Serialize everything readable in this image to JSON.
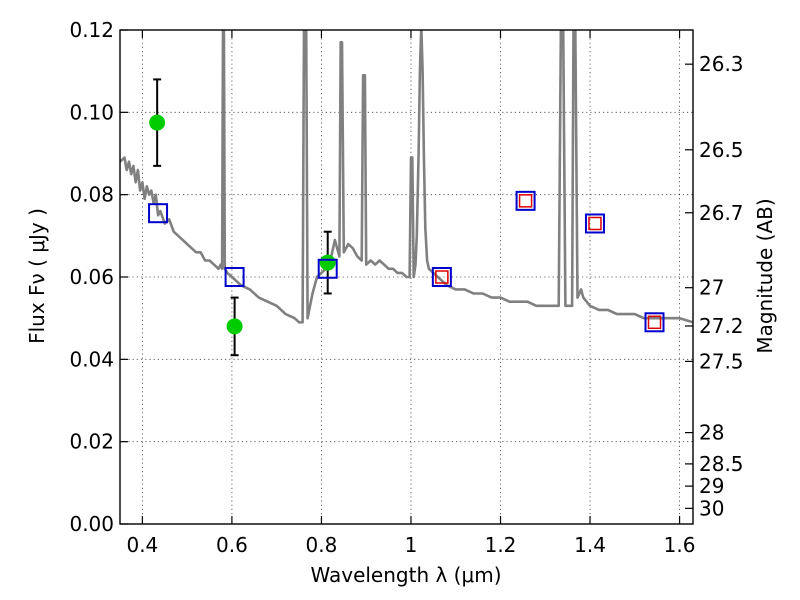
{
  "chart_data": {
    "type": "scatter",
    "xlabel": "Wavelength  λ (μm)",
    "ylabel": "Flux  Fν  ( μJy )",
    "ylabel_right": "Magnitude (AB)",
    "xlim": [
      0.35,
      1.63
    ],
    "ylim": [
      0.0,
      0.12
    ],
    "grid": true,
    "x_ticks": [
      {
        "value": 0.4,
        "label": "0.4"
      },
      {
        "value": 0.6,
        "label": "0.6"
      },
      {
        "value": 0.8,
        "label": "0.8"
      },
      {
        "value": 1.0,
        "label": "1"
      },
      {
        "value": 1.2,
        "label": "1.2"
      },
      {
        "value": 1.4,
        "label": "1.4"
      },
      {
        "value": 1.6,
        "label": "1.6"
      }
    ],
    "y_ticks": [
      {
        "value": 0.0,
        "label": "0.00"
      },
      {
        "value": 0.02,
        "label": "0.02"
      },
      {
        "value": 0.04,
        "label": "0.04"
      },
      {
        "value": 0.06,
        "label": "0.06"
      },
      {
        "value": 0.08,
        "label": "0.08"
      },
      {
        "value": 0.1,
        "label": "0.10"
      },
      {
        "value": 0.12,
        "label": "0.12"
      }
    ],
    "magnitude_ticks": [
      {
        "flux": 0.1117,
        "label": "26.3"
      },
      {
        "flux": 0.0909,
        "label": "26.5"
      },
      {
        "flux": 0.0756,
        "label": "26.7"
      },
      {
        "flux": 0.0574,
        "label": "27"
      },
      {
        "flux": 0.0481,
        "label": "27.2"
      },
      {
        "flux": 0.0395,
        "label": "27.5"
      },
      {
        "flux": 0.0222,
        "label": "28"
      },
      {
        "flux": 0.0146,
        "label": "28.5"
      },
      {
        "flux": 0.0092,
        "label": "29"
      },
      {
        "flux": 0.0038,
        "label": "30"
      }
    ],
    "series": [
      {
        "kind": "model_spectrum",
        "color": "#808080",
        "points": [
          [
            0.35,
            0.088
          ],
          [
            0.36,
            0.089
          ],
          [
            0.365,
            0.086
          ],
          [
            0.37,
            0.088
          ],
          [
            0.375,
            0.085
          ],
          [
            0.38,
            0.087
          ],
          [
            0.385,
            0.083
          ],
          [
            0.39,
            0.086
          ],
          [
            0.395,
            0.081
          ],
          [
            0.4,
            0.083
          ],
          [
            0.405,
            0.079
          ],
          [
            0.41,
            0.082
          ],
          [
            0.415,
            0.08
          ],
          [
            0.42,
            0.081
          ],
          [
            0.425,
            0.078
          ],
          [
            0.43,
            0.08
          ],
          [
            0.435,
            0.075
          ],
          [
            0.44,
            0.076
          ],
          [
            0.45,
            0.073
          ],
          [
            0.46,
            0.074
          ],
          [
            0.47,
            0.071
          ],
          [
            0.48,
            0.07
          ],
          [
            0.49,
            0.069
          ],
          [
            0.5,
            0.068
          ],
          [
            0.51,
            0.067
          ],
          [
            0.52,
            0.066
          ],
          [
            0.53,
            0.066
          ],
          [
            0.54,
            0.064
          ],
          [
            0.55,
            0.064
          ],
          [
            0.56,
            0.063
          ],
          [
            0.57,
            0.062
          ],
          [
            0.575,
            0.063
          ],
          [
            0.578,
            0.062
          ],
          [
            0.58,
            0.121
          ],
          [
            0.582,
            0.121
          ],
          [
            0.584,
            0.062
          ],
          [
            0.59,
            0.061
          ],
          [
            0.6,
            0.06
          ],
          [
            0.62,
            0.058
          ],
          [
            0.64,
            0.057
          ],
          [
            0.66,
            0.055
          ],
          [
            0.68,
            0.054
          ],
          [
            0.7,
            0.053
          ],
          [
            0.72,
            0.051
          ],
          [
            0.74,
            0.05
          ],
          [
            0.75,
            0.049
          ],
          [
            0.758,
            0.049
          ],
          [
            0.761,
            0.121
          ],
          [
            0.766,
            0.121
          ],
          [
            0.769,
            0.05
          ],
          [
            0.78,
            0.056
          ],
          [
            0.79,
            0.06
          ],
          [
            0.8,
            0.061
          ],
          [
            0.81,
            0.062
          ],
          [
            0.82,
            0.064
          ],
          [
            0.83,
            0.069
          ],
          [
            0.835,
            0.067
          ],
          [
            0.84,
            0.065
          ],
          [
            0.843,
            0.117
          ],
          [
            0.846,
            0.117
          ],
          [
            0.85,
            0.066
          ],
          [
            0.86,
            0.068
          ],
          [
            0.87,
            0.067
          ],
          [
            0.88,
            0.065
          ],
          [
            0.89,
            0.064
          ],
          [
            0.893,
            0.109
          ],
          [
            0.897,
            0.109
          ],
          [
            0.9,
            0.063
          ],
          [
            0.91,
            0.064
          ],
          [
            0.92,
            0.063
          ],
          [
            0.93,
            0.064
          ],
          [
            0.94,
            0.063
          ],
          [
            0.95,
            0.062
          ],
          [
            0.96,
            0.062
          ],
          [
            0.97,
            0.061
          ],
          [
            0.98,
            0.061
          ],
          [
            0.99,
            0.06
          ],
          [
            0.997,
            0.06
          ],
          [
            1.0,
            0.089
          ],
          [
            1.003,
            0.089
          ],
          [
            1.006,
            0.06
          ],
          [
            1.01,
            0.063
          ],
          [
            1.013,
            0.07
          ],
          [
            1.017,
            0.09
          ],
          [
            1.02,
            0.11
          ],
          [
            1.023,
            0.121
          ],
          [
            1.026,
            0.11
          ],
          [
            1.029,
            0.088
          ],
          [
            1.032,
            0.072
          ],
          [
            1.036,
            0.064
          ],
          [
            1.04,
            0.062
          ],
          [
            1.06,
            0.06
          ],
          [
            1.08,
            0.058
          ],
          [
            1.1,
            0.057
          ],
          [
            1.12,
            0.057
          ],
          [
            1.14,
            0.056
          ],
          [
            1.16,
            0.056
          ],
          [
            1.18,
            0.055
          ],
          [
            1.2,
            0.055
          ],
          [
            1.22,
            0.054
          ],
          [
            1.24,
            0.054
          ],
          [
            1.26,
            0.054
          ],
          [
            1.28,
            0.053
          ],
          [
            1.3,
            0.053
          ],
          [
            1.33,
            0.053
          ],
          [
            1.335,
            0.121
          ],
          [
            1.34,
            0.121
          ],
          [
            1.345,
            0.053
          ],
          [
            1.355,
            0.053
          ],
          [
            1.36,
            0.053
          ],
          [
            1.363,
            0.121
          ],
          [
            1.367,
            0.121
          ],
          [
            1.372,
            0.055
          ],
          [
            1.38,
            0.057
          ],
          [
            1.385,
            0.055
          ],
          [
            1.4,
            0.053
          ],
          [
            1.42,
            0.052
          ],
          [
            1.44,
            0.052
          ],
          [
            1.46,
            0.051
          ],
          [
            1.48,
            0.051
          ],
          [
            1.5,
            0.051
          ],
          [
            1.52,
            0.05
          ],
          [
            1.54,
            0.05
          ],
          [
            1.56,
            0.05
          ],
          [
            1.58,
            0.05
          ],
          [
            1.6,
            0.05
          ],
          [
            1.63,
            0.049
          ]
        ]
      },
      {
        "kind": "observed",
        "color": "#00cc00",
        "points": [
          {
            "x": 0.433,
            "y": 0.0975,
            "yerr": 0.0105
          },
          {
            "x": 0.606,
            "y": 0.048,
            "yerr": 0.007
          },
          {
            "x": 0.814,
            "y": 0.0635,
            "yerr": 0.0075
          }
        ]
      },
      {
        "kind": "model_photometry_blue",
        "color": "#0000cc",
        "points": [
          [
            0.435,
            0.0755
          ],
          [
            0.606,
            0.06
          ],
          [
            0.814,
            0.062
          ],
          [
            1.069,
            0.06
          ],
          [
            1.256,
            0.0785
          ],
          [
            1.411,
            0.073
          ],
          [
            1.544,
            0.049
          ]
        ]
      },
      {
        "kind": "model_photometry_red",
        "color": "#dd0000",
        "points": [
          [
            1.069,
            0.06
          ],
          [
            1.256,
            0.0785
          ],
          [
            1.411,
            0.073
          ],
          [
            1.544,
            0.049
          ]
        ]
      }
    ]
  }
}
